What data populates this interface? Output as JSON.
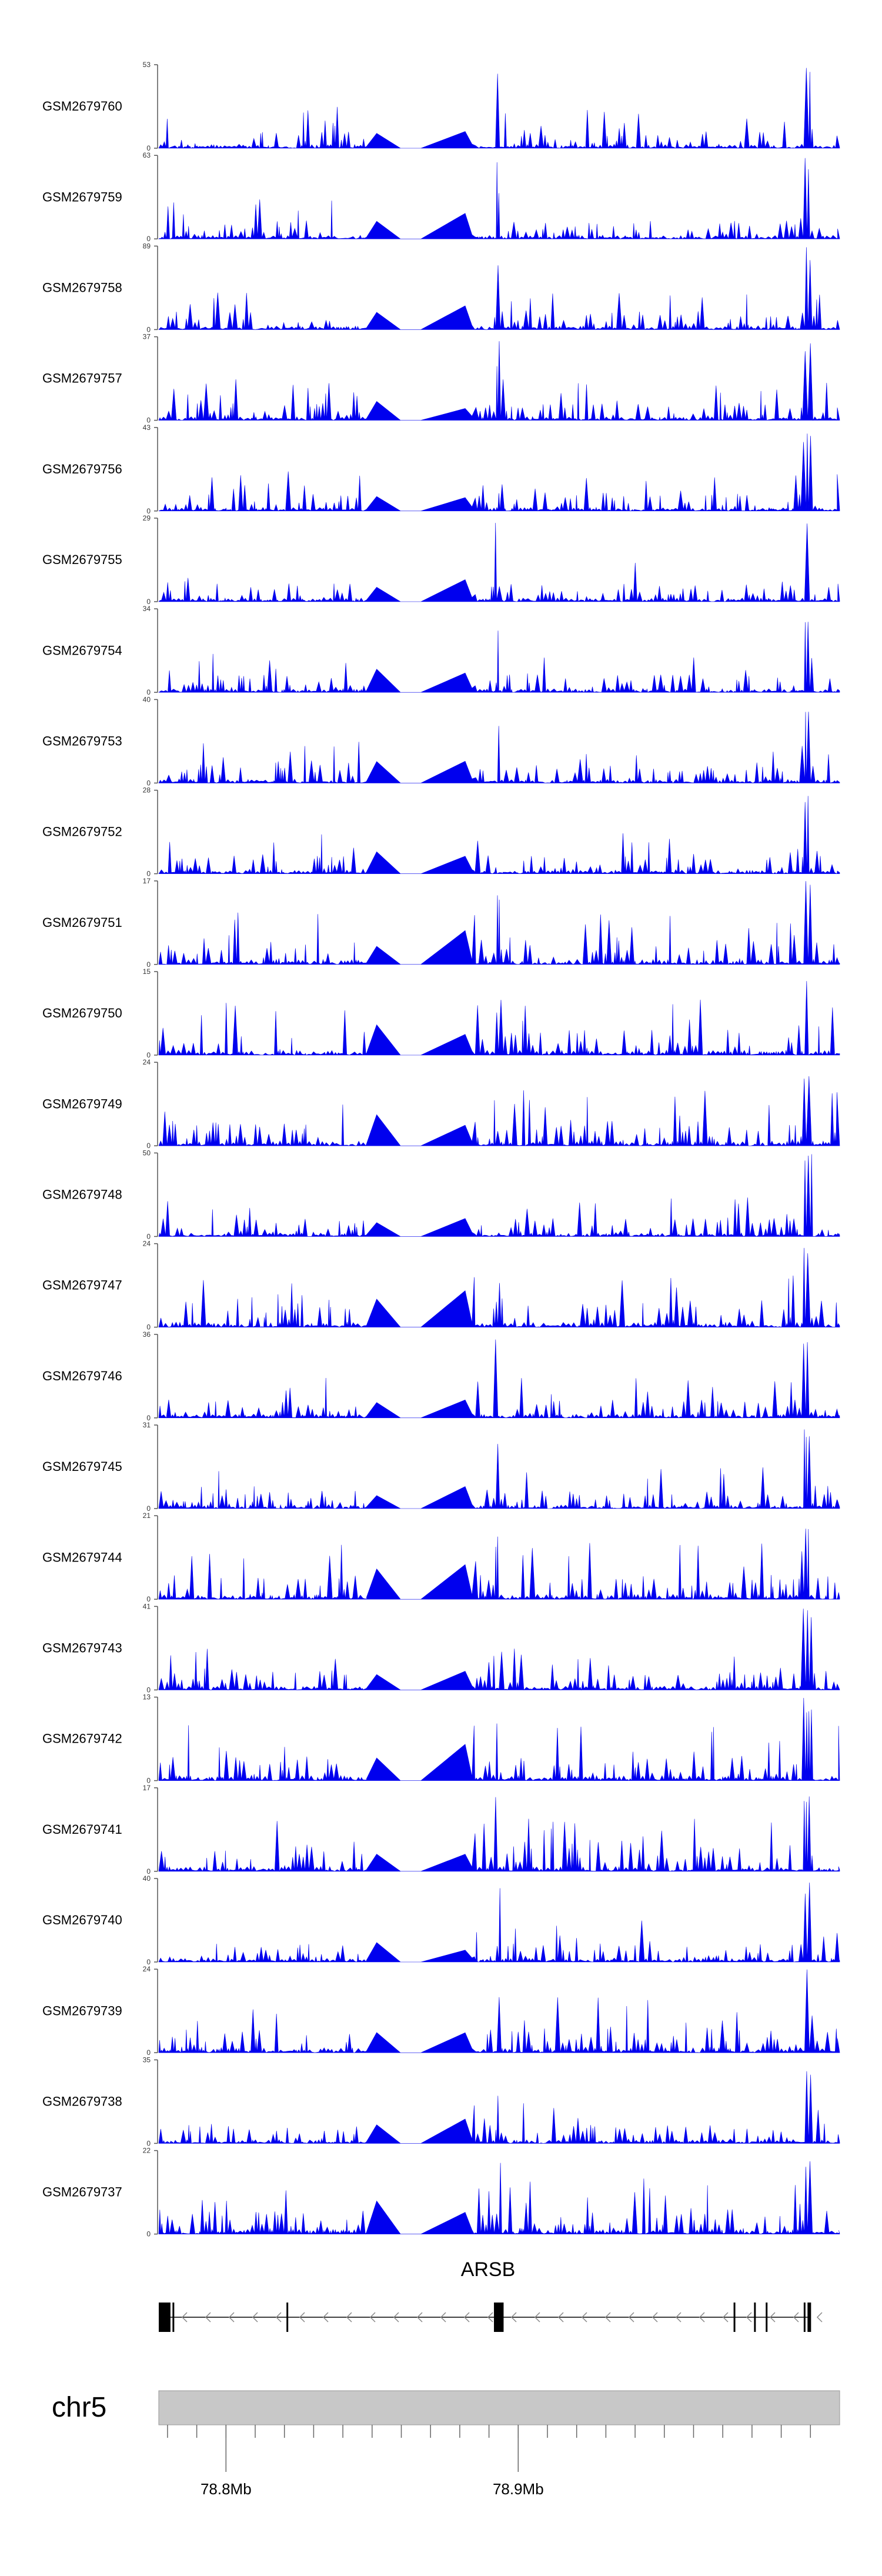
{
  "chart_data": {
    "type": "area",
    "title": "",
    "xlabel": "chr5",
    "ylabel": "",
    "chromosome": "chr5",
    "x_ticks": [
      "78.8Mb",
      "78.9Mb"
    ],
    "x_tick_values": [
      78.8,
      78.9
    ],
    "xlim": [
      78.777,
      79.01
    ],
    "gene": {
      "name": "ARSB",
      "strand": "-",
      "exon_positions": [
        78.778,
        78.782,
        78.821,
        78.892,
        78.974,
        78.981,
        78.985,
        78.998
      ],
      "exon_blocks": [
        [
          78.777,
          78.781
        ],
        [
          78.892,
          78.895
        ],
        [
          78.999,
          79.0
        ]
      ]
    },
    "series": [
      {
        "name": "GSM2679760",
        "ymax": 53,
        "ymin": 0,
        "seed": 760
      },
      {
        "name": "GSM2679759",
        "ymax": 63,
        "ymin": 0,
        "seed": 759
      },
      {
        "name": "GSM2679758",
        "ymax": 89,
        "ymin": 0,
        "seed": 758
      },
      {
        "name": "GSM2679757",
        "ymax": 37,
        "ymin": 0,
        "seed": 757
      },
      {
        "name": "GSM2679756",
        "ymax": 43,
        "ymin": 0,
        "seed": 756
      },
      {
        "name": "GSM2679755",
        "ymax": 29,
        "ymin": 0,
        "seed": 755
      },
      {
        "name": "GSM2679754",
        "ymax": 34,
        "ymin": 0,
        "seed": 754
      },
      {
        "name": "GSM2679753",
        "ymax": 40,
        "ymin": 0,
        "seed": 753
      },
      {
        "name": "GSM2679752",
        "ymax": 28,
        "ymin": 0,
        "seed": 752
      },
      {
        "name": "GSM2679751",
        "ymax": 17,
        "ymin": 0,
        "seed": 751
      },
      {
        "name": "GSM2679750",
        "ymax": 15,
        "ymin": 0,
        "seed": 750
      },
      {
        "name": "GSM2679749",
        "ymax": 24,
        "ymin": 0,
        "seed": 749
      },
      {
        "name": "GSM2679748",
        "ymax": 50,
        "ymin": 0,
        "seed": 748
      },
      {
        "name": "GSM2679747",
        "ymax": 24,
        "ymin": 0,
        "seed": 747
      },
      {
        "name": "GSM2679746",
        "ymax": 36,
        "ymin": 0,
        "seed": 746
      },
      {
        "name": "GSM2679745",
        "ymax": 31,
        "ymin": 0,
        "seed": 745
      },
      {
        "name": "GSM2679744",
        "ymax": 21,
        "ymin": 0,
        "seed": 744
      },
      {
        "name": "GSM2679743",
        "ymax": 41,
        "ymin": 0,
        "seed": 743
      },
      {
        "name": "GSM2679742",
        "ymax": 13,
        "ymin": 0,
        "seed": 742
      },
      {
        "name": "GSM2679741",
        "ymax": 17,
        "ymin": 0,
        "seed": 741
      },
      {
        "name": "GSM2679740",
        "ymax": 40,
        "ymin": 0,
        "seed": 740
      },
      {
        "name": "GSM2679739",
        "ymax": 24,
        "ymin": 0,
        "seed": 739
      },
      {
        "name": "GSM2679738",
        "ymax": 35,
        "ymin": 0,
        "seed": 738
      },
      {
        "name": "GSM2679737",
        "ymax": 22,
        "ymin": 0,
        "seed": 737
      }
    ],
    "colors": {
      "fill": "#0000ee",
      "axis": "#555555",
      "ideogram": "#c8c8c8",
      "gene": "#000000"
    }
  }
}
